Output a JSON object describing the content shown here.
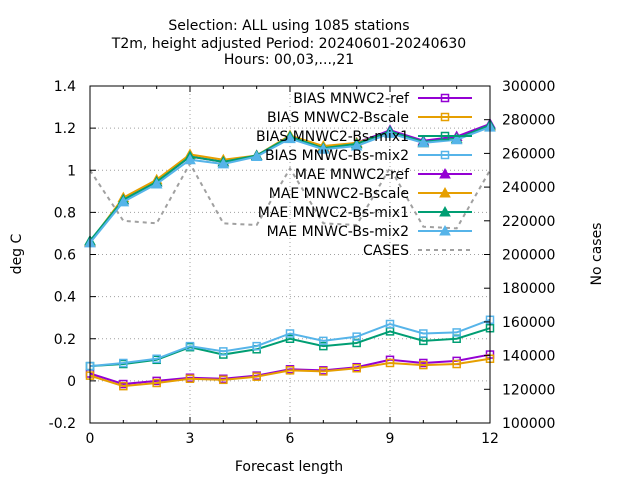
{
  "chart_data": {
    "type": "line",
    "title_lines": [
      "Selection: ALL using  1085 stations",
      "T2m, height adjusted   Period: 20240601-20240630",
      "Hours: 00,03,...,21"
    ],
    "xlabel": "Forecast length",
    "ylabel": "deg C",
    "y2label": "No cases",
    "x": [
      0,
      1,
      2,
      3,
      4,
      5,
      6,
      7,
      8,
      9,
      10,
      11,
      12
    ],
    "xlim": [
      0,
      12
    ],
    "xticks": [
      "0",
      "3",
      "6",
      "9",
      "12"
    ],
    "ylim": [
      -0.2,
      1.4
    ],
    "yticks": [
      "-0.2",
      "0",
      "0.2",
      "0.4",
      "0.6",
      "0.8",
      "1",
      "1.2",
      "1.4"
    ],
    "y2lim": [
      100000,
      300000
    ],
    "y2ticks": [
      "100000",
      "120000",
      "140000",
      "160000",
      "180000",
      "200000",
      "220000",
      "240000",
      "260000",
      "280000",
      "300000"
    ],
    "grid": true,
    "legend_position": "top-right",
    "series": [
      {
        "name": "BIAS MNWC2-ref",
        "color": "#9400d3",
        "marker": "square",
        "axis": "y",
        "values": [
          0.035,
          -0.015,
          0.0,
          0.015,
          0.01,
          0.025,
          0.055,
          0.05,
          0.065,
          0.1,
          0.085,
          0.095,
          0.125
        ]
      },
      {
        "name": "BIAS MNWC2-Bscale",
        "color": "#e69f00",
        "marker": "square",
        "axis": "y",
        "values": [
          0.025,
          -0.025,
          -0.01,
          0.01,
          0.005,
          0.02,
          0.05,
          0.045,
          0.06,
          0.085,
          0.075,
          0.08,
          0.105
        ]
      },
      {
        "name": "BIAS MNWC2-Bs-mix1",
        "color": "#009e73",
        "marker": "square",
        "axis": "y",
        "values": [
          0.07,
          0.08,
          0.1,
          0.16,
          0.125,
          0.15,
          0.2,
          0.165,
          0.18,
          0.235,
          0.19,
          0.2,
          0.25
        ]
      },
      {
        "name": "BIAS MNWC-Bs-mix2",
        "color": "#56b4e9",
        "marker": "square",
        "axis": "y",
        "values": [
          0.07,
          0.085,
          0.105,
          0.165,
          0.14,
          0.165,
          0.225,
          0.19,
          0.21,
          0.27,
          0.225,
          0.23,
          0.29
        ]
      },
      {
        "name": "MAE MNWC2-ref",
        "color": "#9400d3",
        "marker": "triangle",
        "axis": "y",
        "values": [
          0.66,
          0.86,
          0.945,
          1.065,
          1.04,
          1.07,
          1.16,
          1.11,
          1.13,
          1.19,
          1.14,
          1.16,
          1.22
        ]
      },
      {
        "name": "MAE MNWC2-Bscale",
        "color": "#e69f00",
        "marker": "triangle",
        "axis": "y",
        "values": [
          0.66,
          0.87,
          0.955,
          1.075,
          1.05,
          1.07,
          1.165,
          1.115,
          1.13,
          1.18,
          1.13,
          1.15,
          1.21
        ]
      },
      {
        "name": "MAE MNWC2-Bs-mix1",
        "color": "#009e73",
        "marker": "triangle",
        "axis": "y",
        "values": [
          0.665,
          0.86,
          0.945,
          1.065,
          1.04,
          1.07,
          1.16,
          1.105,
          1.125,
          1.185,
          1.135,
          1.15,
          1.215
        ]
      },
      {
        "name": "MAE MNWC-Bs-mix2",
        "color": "#56b4e9",
        "marker": "triangle",
        "axis": "y",
        "values": [
          0.655,
          0.85,
          0.935,
          1.05,
          1.03,
          1.065,
          1.15,
          1.1,
          1.115,
          1.175,
          1.13,
          1.145,
          1.205
        ]
      },
      {
        "name": "CASES",
        "color": "#a0a0a0",
        "marker": "none",
        "dashed": true,
        "axis": "y2",
        "values": [
          250000,
          220000,
          218500,
          254000,
          218500,
          217500,
          251000,
          218500,
          217500,
          251500,
          216500,
          215500,
          250000
        ]
      }
    ]
  }
}
